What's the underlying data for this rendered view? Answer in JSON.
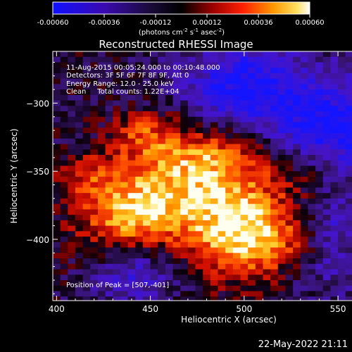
{
  "colorbar": {
    "ticks": [
      "-0.00060",
      "-0.00036",
      "-0.00012",
      "0.00012",
      "0.00036",
      "0.00060"
    ],
    "tick_values": [
      -0.0006,
      -0.00036,
      -0.00012,
      0.00012,
      0.00036,
      0.0006
    ],
    "range": [
      -0.0006,
      0.0006
    ],
    "unit_main": "(photons cm",
    "unit_sup1": "-2",
    "unit_mid": " s",
    "unit_sup2": "-1",
    "unit_end": " asec",
    "unit_sup3": "-2",
    "unit_close": ")"
  },
  "chart_data": {
    "type": "heatmap",
    "title": "Reconstructed RHESSI Image",
    "xlabel": "Heliocentric X (arcsec)",
    "ylabel": "Heliocentric Y (arcsec)",
    "xlim": [
      398,
      592
    ],
    "ylim": [
      -445,
      -262
    ],
    "xticks": [
      400,
      450,
      500,
      550
    ],
    "xtick_labels": [
      "400",
      "450",
      "500",
      "550"
    ],
    "yticks": [
      -300,
      -350,
      -400
    ],
    "ytick_labels": [
      "−300",
      "−350",
      "−400"
    ],
    "peak": {
      "x": 507,
      "y": -401
    },
    "colormap": [
      "#0000c8",
      "#000000",
      "#c80000",
      "#ff6400",
      "#ffc800",
      "#ffffff"
    ],
    "annotations": [
      "11-Aug-2015 00:05:24.000 to 00:10:48.000",
      "Detectors: 3F 5F 6F 7F 8F 9F, Att 0",
      "Energy Range: 12.0 - 25.0 keV",
      "Clean     Total counts: 1.22E+04"
    ],
    "peak_label": "Position of Peak = [507,-401]"
  },
  "footer": {
    "timestamp": "22-May-2022 21:11"
  }
}
